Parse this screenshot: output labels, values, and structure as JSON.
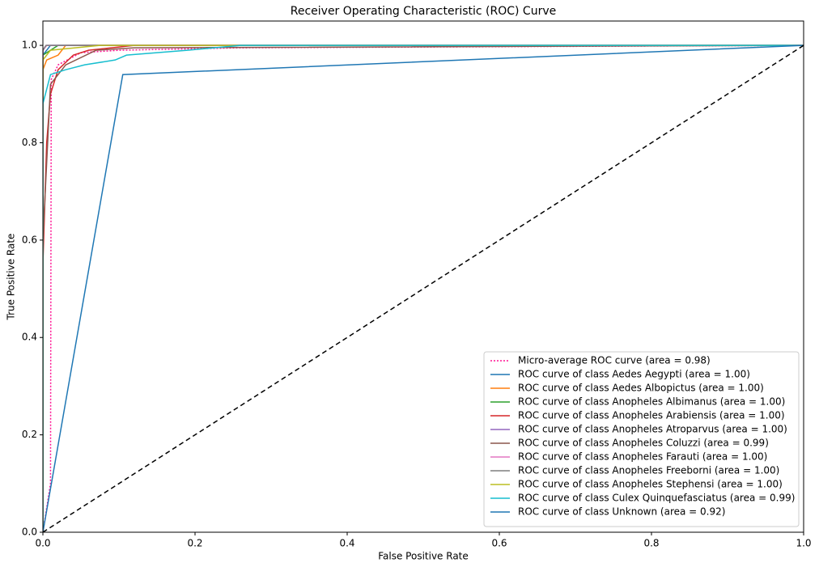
{
  "chart_data": {
    "type": "line",
    "title": "Receiver Operating Characteristic (ROC) Curve",
    "x_label": "False Positive Rate",
    "y_label": "True Positive Rate",
    "xlim": [
      0,
      1
    ],
    "ylim": [
      0,
      1.05
    ],
    "xticks": [
      {
        "value": 0,
        "label": "0.0"
      },
      {
        "value": 0.2,
        "label": "0.2"
      },
      {
        "value": 0.4,
        "label": "0.4"
      },
      {
        "value": 0.6,
        "label": "0.6"
      },
      {
        "value": 0.8,
        "label": "0.8"
      },
      {
        "value": 1,
        "label": "1.0"
      }
    ],
    "yticks": [
      {
        "value": 0,
        "label": "0.0"
      },
      {
        "value": 0.2,
        "label": "0.2"
      },
      {
        "value": 0.4,
        "label": "0.4"
      },
      {
        "value": 0.6,
        "label": "0.6"
      },
      {
        "value": 0.8,
        "label": "0.8"
      },
      {
        "value": 1,
        "label": "1.0"
      }
    ],
    "legend": "lower right",
    "series": [
      {
        "name": "Micro-average ROC curve (area = 0.98)",
        "color": "#ff1493",
        "style": "dotted",
        "x": [
          0,
          0.01,
          0.011,
          0.02,
          0.05,
          0.1,
          0.26,
          1
        ],
        "values": [
          0,
          0.1,
          0.93,
          0.96,
          0.985,
          0.99,
          0.995,
          1
        ]
      },
      {
        "name": "ROC curve of class Aedes Aegypti (area = 1.00)",
        "color": "#1f77b4",
        "x": [
          0,
          0,
          0.01,
          1
        ],
        "values": [
          0,
          0.98,
          1,
          1
        ]
      },
      {
        "name": "ROC curve of class Aedes Albopictus (area = 1.00)",
        "color": "#ff7f0e",
        "x": [
          0,
          0,
          0.005,
          0.02,
          0.03,
          1
        ],
        "values": [
          0,
          0.95,
          0.97,
          0.98,
          1,
          1
        ]
      },
      {
        "name": "ROC curve of class Anopheles Albimanus (area = 1.00)",
        "color": "#2ca02c",
        "x": [
          0,
          0,
          0.02,
          1
        ],
        "values": [
          0,
          0.98,
          1,
          1
        ]
      },
      {
        "name": "ROC curve of class Anopheles Arabiensis (area = 1.00)",
        "color": "#d62728",
        "x": [
          0,
          0,
          0.005,
          0.01,
          0.02,
          0.04,
          0.06,
          0.12,
          1
        ],
        "values": [
          0,
          0.55,
          0.8,
          0.9,
          0.95,
          0.98,
          0.99,
          1,
          1
        ]
      },
      {
        "name": "ROC curve of class Anopheles Atroparvus (area = 1.00)",
        "color": "#9467bd",
        "x": [
          0,
          0,
          0.005,
          1
        ],
        "values": [
          0,
          0.99,
          1,
          1
        ]
      },
      {
        "name": "ROC curve of class Anopheles Coluzzi (area = 0.99)",
        "color": "#8c564b",
        "x": [
          0,
          0,
          0.01,
          0.03,
          0.07,
          0.12,
          1
        ],
        "values": [
          0,
          0.6,
          0.92,
          0.96,
          0.99,
          0.995,
          1
        ]
      },
      {
        "name": "ROC curve of class Anopheles Farauti (area = 1.00)",
        "color": "#e377c2",
        "x": [
          0,
          0,
          0.005,
          1
        ],
        "values": [
          0,
          0.99,
          1,
          1
        ]
      },
      {
        "name": "ROC curve of class Anopheles Freeborni (area = 1.00)",
        "color": "#7f7f7f",
        "x": [
          0,
          0,
          0.004,
          1
        ],
        "values": [
          0,
          0.99,
          1,
          1
        ]
      },
      {
        "name": "ROC curve of class Anopheles Stephensi (area = 1.00)",
        "color": "#bcbd22",
        "x": [
          0,
          0,
          0.01,
          0.075,
          1
        ],
        "values": [
          0,
          0.97,
          0.99,
          1,
          1
        ]
      },
      {
        "name": "ROC curve of class Culex Quinquefasciatus (area = 0.99)",
        "color": "#17becf",
        "x": [
          0,
          0,
          0.01,
          0.03,
          0.055,
          0.095,
          0.11,
          0.19,
          0.26,
          1
        ],
        "values": [
          0,
          0.88,
          0.94,
          0.95,
          0.96,
          0.97,
          0.98,
          0.99,
          1,
          1
        ]
      },
      {
        "name": "ROC curve of class Unknown (area = 0.92)",
        "color": "#1f77b4",
        "x": [
          0,
          0.105,
          1
        ],
        "values": [
          0,
          0.94,
          1
        ]
      }
    ],
    "diagonal": {
      "color": "#000000",
      "x": [
        0,
        1
      ],
      "values": [
        0,
        1
      ]
    }
  }
}
